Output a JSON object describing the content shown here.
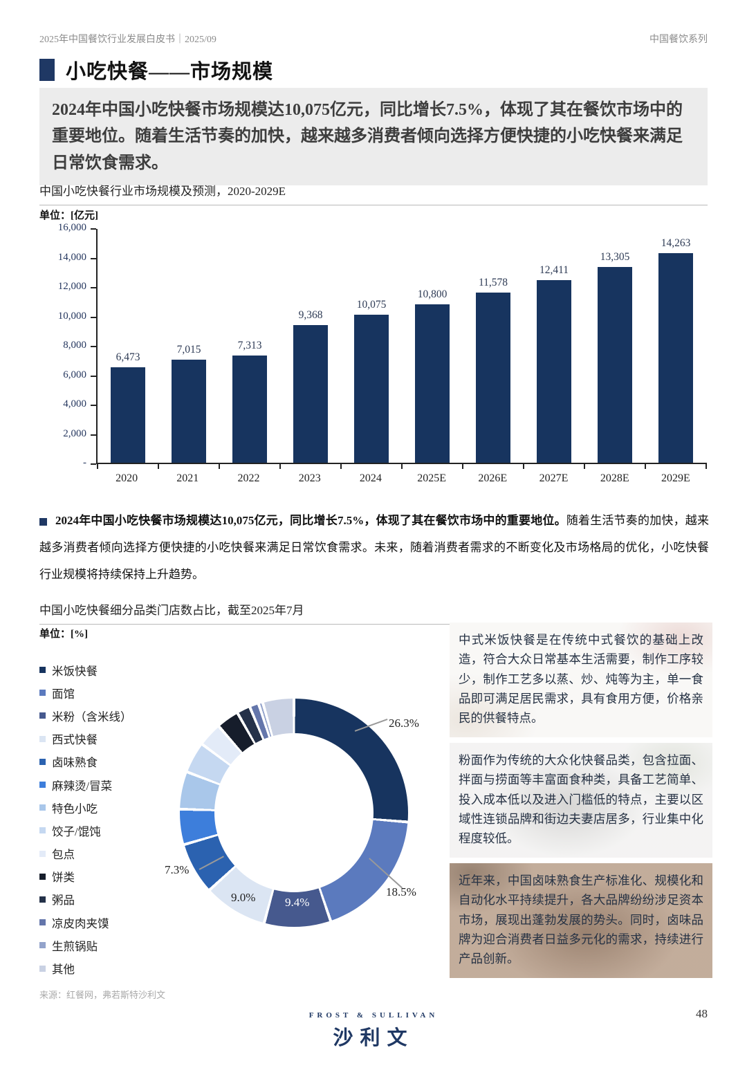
{
  "header": {
    "left": "2025年中国餐饮行业发展白皮书｜2025/09",
    "right": "中国餐饮系列"
  },
  "title": "小吃快餐——市场规模",
  "highlight": "2024年中国小吃快餐市场规模达10,075亿元，同比增长7.5%，体现了其在餐饮市场中的重要地位。随着生活节奏的加快，越来越多消费者倾向选择方便快捷的小吃快餐来满足日常饮食需求。",
  "bullet": {
    "bold": "2024年中国小吃快餐市场规模达10,075亿元，同比增长7.5%，体现了其在餐饮市场中的重要地位。",
    "rest": "随着生活节奏的加快，越来越多消费者倾向选择方便快捷的小吃快餐来满足日常饮食需求。未来，随着消费者需求的不断变化及市场格局的优化，小吃快餐行业规模将持续保持上升趋势。"
  },
  "chart_data": [
    {
      "type": "bar",
      "title": "中国小吃快餐行业市场规模及预测，2020-2029E",
      "unit_label": "单位：[亿元]",
      "categories": [
        "2020",
        "2021",
        "2022",
        "2023",
        "2024",
        "2025E",
        "2026E",
        "2027E",
        "2028E",
        "2029E"
      ],
      "values": [
        6473,
        7015,
        7313,
        9368,
        10075,
        10800,
        11578,
        12411,
        13305,
        14263
      ],
      "value_labels": [
        "6,473",
        "7,015",
        "7,313",
        "9,368",
        "10,075",
        "10,800",
        "11,578",
        "12,411",
        "13,305",
        "14,263"
      ],
      "ylabel": "亿元",
      "ylim": [
        0,
        16000
      ],
      "yticks": [
        0,
        2000,
        4000,
        6000,
        8000,
        10000,
        12000,
        14000,
        16000
      ],
      "ytick_labels": [
        "-",
        "2,000",
        "4,000",
        "6,000",
        "8,000",
        "10,000",
        "12,000",
        "14,000",
        "16,000"
      ],
      "grid": false,
      "legend_position": "none",
      "bar_color": "#17345f"
    },
    {
      "type": "pie",
      "subtype": "donut",
      "title": "中国小吃快餐细分品类门店数占比，截至2025年7月",
      "unit_label": "单位：[%]",
      "legend_position": "left",
      "segments": [
        {
          "label": "米饭快餐",
          "value": 26.3,
          "pct_label": "26.3%",
          "color": "#17345f"
        },
        {
          "label": "面馆",
          "value": 18.5,
          "pct_label": "18.5%",
          "color": "#5b7abe"
        },
        {
          "label": "米粉（含米线）",
          "value": 9.4,
          "pct_label": "9.4%",
          "color": "#46598e"
        },
        {
          "label": "西式快餐",
          "value": 9.0,
          "pct_label": "9.0%",
          "color": "#dbe5f3"
        },
        {
          "label": "卤味熟食",
          "value": 7.3,
          "pct_label": "7.3%",
          "color": "#2b62b0"
        },
        {
          "label": "麻辣烫/冒菜",
          "value": 5.0,
          "color": "#3d7edb"
        },
        {
          "label": "特色小吃",
          "value": 5.3,
          "color": "#a9c7ea"
        },
        {
          "label": "饺子/馄饨",
          "value": 4.4,
          "color": "#c5d8f1"
        },
        {
          "label": "包点",
          "value": 3.4,
          "color": "#e3ebf8"
        },
        {
          "label": "饼类",
          "value": 3.2,
          "color": "#161d2b"
        },
        {
          "label": "粥品",
          "value": 1.9,
          "color": "#243149"
        },
        {
          "label": "凉皮肉夹馍",
          "value": 1.3,
          "color": "#6476ab"
        },
        {
          "label": "生煎锅贴",
          "value": 0.6,
          "color": "#93a3cb"
        },
        {
          "label": "其他",
          "value": 4.4,
          "color": "#c9d1e3"
        }
      ]
    }
  ],
  "insight_boxes": [
    {
      "text": "中式米饭快餐是在传统中式餐饮的基础上改造，符合大众日常基本生活需要，制作工序较少，制作工艺多以蒸、炒、炖等为主，单一食品即可满足居民需求，具有食用方便，价格亲民的供餐特点。"
    },
    {
      "text": "粉面作为传统的大众化快餐品类，包含拉面、拌面与捞面等丰富面食种类，具备工艺简单、投入成本低以及进入门槛低的特点，主要以区域性连锁品牌和街边夫妻店居多，行业集中化程度较低。"
    },
    {
      "text": "近年来，中国卤味熟食生产标准化、规模化和自动化水平持续提升，各大品牌纷纷涉足资本市场，展现出蓬勃发展的势头。同时，卤味品牌为迎合消费者日益多元化的需求，持续进行产品创新。"
    }
  ],
  "footer": {
    "source": "来源：红餐网，弗若斯特沙利文",
    "logo_top": "FROST & SULLIVAN",
    "logo_main": "沙利文",
    "page_number": "48"
  },
  "colors": {
    "accent_navy": "#1f3864",
    "bar": "#17345f",
    "highlight_bg": "#ececec"
  }
}
